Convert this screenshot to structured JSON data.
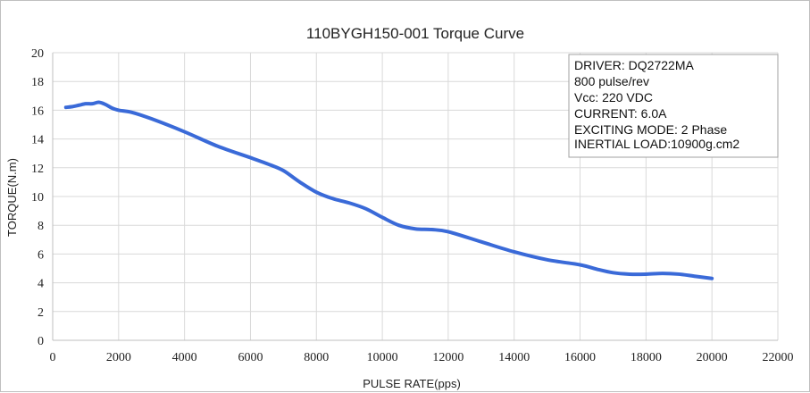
{
  "chart_data": {
    "type": "line",
    "title": "110BYGH150-001  Torque Curve",
    "xlabel": "PULSE RATE(pps)",
    "ylabel": "TORQUE(N.m)",
    "xlim": [
      0,
      22000
    ],
    "ylim": [
      0,
      20
    ],
    "xticks": [
      0,
      2000,
      4000,
      6000,
      8000,
      10000,
      12000,
      14000,
      16000,
      18000,
      20000,
      22000
    ],
    "yticks": [
      0,
      2,
      4,
      6,
      8,
      10,
      12,
      14,
      16,
      18,
      20
    ],
    "grid": true,
    "legend": "none",
    "line_color": "#3a6ad8",
    "series": [
      {
        "x": [
          400,
          600,
          800,
          1000,
          1200,
          1400,
          1600,
          1800,
          2000,
          2400,
          3000,
          4000,
          5000,
          6000,
          6600,
          7000,
          7500,
          8000,
          8500,
          9000,
          9500,
          10000,
          10500,
          11000,
          11500,
          12000,
          13000,
          14000,
          15000,
          16000,
          16500,
          17000,
          17500,
          18000,
          18500,
          19000,
          19500,
          20000
        ],
        "y": [
          16.2,
          16.25,
          16.35,
          16.45,
          16.45,
          16.55,
          16.4,
          16.15,
          16.0,
          15.85,
          15.4,
          14.5,
          13.5,
          12.7,
          12.2,
          11.8,
          11.0,
          10.3,
          9.85,
          9.55,
          9.15,
          8.55,
          8.0,
          7.75,
          7.7,
          7.55,
          6.85,
          6.15,
          5.6,
          5.25,
          4.95,
          4.7,
          4.6,
          4.6,
          4.65,
          4.6,
          4.45,
          4.3
        ]
      }
    ]
  },
  "info_box": {
    "lines": [
      "DRIVER: DQ2722MA",
      "800  pulse/rev",
      "Vcc: 220 VDC",
      "CURRENT: 6.0A",
      "EXCITING MODE: 2 Phase",
      "INERTIAL LOAD:10900g.cm2"
    ]
  }
}
